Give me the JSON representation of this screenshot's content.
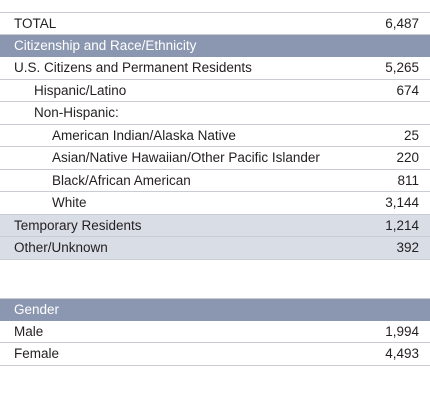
{
  "table": {
    "total": {
      "label": "TOTAL",
      "value": "6,487"
    },
    "citizenship_header": "Citizenship and Race/Ethnicity",
    "us_citizens": {
      "label": "U.S. Citizens and Permanent Residents",
      "value": "5,265"
    },
    "hispanic": {
      "label": "Hispanic/Latino",
      "value": "674"
    },
    "non_hispanic": {
      "label": "Non-Hispanic:"
    },
    "american_indian": {
      "label": "American Indian/Alaska Native",
      "value": "25"
    },
    "asian": {
      "label": "Asian/Native Hawaiian/Other Pacific Islander",
      "value": "220"
    },
    "black": {
      "label": "Black/African American",
      "value": "811"
    },
    "white": {
      "label": "White",
      "value": "3,144"
    },
    "temporary": {
      "label": "Temporary Residents",
      "value": "1,214"
    },
    "other_unknown": {
      "label": "Other/Unknown",
      "value": "392"
    },
    "gender_header": "Gender",
    "male": {
      "label": "Male",
      "value": "1,994"
    },
    "female": {
      "label": "Female",
      "value": "4,493"
    }
  },
  "colors": {
    "header_bg": "#8b97b1",
    "shaded_row_bg": "#d9dde6",
    "rule": "#c9ccd3",
    "text": "#231f20"
  }
}
